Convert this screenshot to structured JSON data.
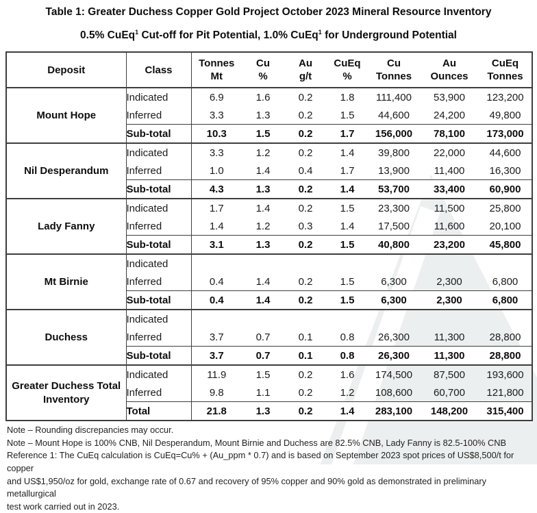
{
  "title": "Table 1: Greater Duchess Copper Gold Project October 2023 Mineral Resource Inventory",
  "subtitle": {
    "p1": "0.5% CuEq",
    "s1": "1",
    "p2": " Cut-off for Pit Potential, 1.0% CuEq",
    "s2": "1",
    "p3": " for Underground Potential"
  },
  "table": {
    "columns": [
      {
        "l1": "Deposit",
        "l2": ""
      },
      {
        "l1": "Class",
        "l2": ""
      },
      {
        "l1": "Tonnes",
        "l2": "Mt"
      },
      {
        "l1": "Cu",
        "l2": "%"
      },
      {
        "l1": "Au",
        "l2": "g/t"
      },
      {
        "l1": "CuEq",
        "l2": "%"
      },
      {
        "l1": "Cu",
        "l2": "Tonnes"
      },
      {
        "l1": "Au",
        "l2": "Ounces"
      },
      {
        "l1": "CuEq",
        "l2": "Tonnes"
      }
    ],
    "groups": [
      {
        "deposit": "Mount Hope",
        "rows": [
          {
            "cls": "Indicated",
            "bold": false,
            "v": [
              "6.9",
              "1.6",
              "0.2",
              "1.8",
              "111,400",
              "53,900",
              "123,200"
            ]
          },
          {
            "cls": "Inferred",
            "bold": false,
            "v": [
              "3.3",
              "1.3",
              "0.2",
              "1.5",
              "44,600",
              "24,200",
              "49,800"
            ]
          },
          {
            "cls": "Sub-total",
            "bold": true,
            "v": [
              "10.3",
              "1.5",
              "0.2",
              "1.7",
              "156,000",
              "78,100",
              "173,000"
            ]
          }
        ]
      },
      {
        "deposit": "Nil Desperandum",
        "rows": [
          {
            "cls": "Indicated",
            "bold": false,
            "v": [
              "3.3",
              "1.2",
              "0.2",
              "1.4",
              "39,800",
              "22,000",
              "44,600"
            ]
          },
          {
            "cls": "Inferred",
            "bold": false,
            "v": [
              "1.0",
              "1.4",
              "0.4",
              "1.7",
              "13,900",
              "11,400",
              "16,300"
            ]
          },
          {
            "cls": "Sub-total",
            "bold": true,
            "v": [
              "4.3",
              "1.3",
              "0.2",
              "1.4",
              "53,700",
              "33,400",
              "60,900"
            ]
          }
        ]
      },
      {
        "deposit": "Lady Fanny",
        "rows": [
          {
            "cls": "Indicated",
            "bold": false,
            "v": [
              "1.7",
              "1.4",
              "0.2",
              "1.5",
              "23,300",
              "11,500",
              "25,800"
            ]
          },
          {
            "cls": "Inferred",
            "bold": false,
            "v": [
              "1.4",
              "1.2",
              "0.3",
              "1.4",
              "17,500",
              "11,600",
              "20,100"
            ]
          },
          {
            "cls": "Sub-total",
            "bold": true,
            "v": [
              "3.1",
              "1.3",
              "0.2",
              "1.5",
              "40,800",
              "23,200",
              "45,800"
            ]
          }
        ]
      },
      {
        "deposit": "Mt Birnie",
        "rows": [
          {
            "cls": "Indicated",
            "bold": false,
            "v": [
              "",
              "",
              "",
              "",
              "",
              "",
              ""
            ]
          },
          {
            "cls": "Inferred",
            "bold": false,
            "v": [
              "0.4",
              "1.4",
              "0.2",
              "1.5",
              "6,300",
              "2,300",
              "6,800"
            ]
          },
          {
            "cls": "Sub-total",
            "bold": true,
            "v": [
              "0.4",
              "1.4",
              "0.2",
              "1.5",
              "6,300",
              "2,300",
              "6,800"
            ]
          }
        ]
      },
      {
        "deposit": "Duchess",
        "rows": [
          {
            "cls": "Indicated",
            "bold": false,
            "v": [
              "",
              "",
              "",
              "",
              "",
              "",
              ""
            ]
          },
          {
            "cls": "Inferred",
            "bold": false,
            "v": [
              "3.7",
              "0.7",
              "0.1",
              "0.8",
              "26,300",
              "11,300",
              "28,800"
            ]
          },
          {
            "cls": "Sub-total",
            "bold": true,
            "v": [
              "3.7",
              "0.7",
              "0.1",
              "0.8",
              "26,300",
              "11,300",
              "28,800"
            ]
          }
        ]
      },
      {
        "deposit": "Greater Duchess Total Inventory",
        "rows": [
          {
            "cls": "Indicated",
            "bold": false,
            "v": [
              "11.9",
              "1.5",
              "0.2",
              "1.6",
              "174,500",
              "87,500",
              "193,600"
            ]
          },
          {
            "cls": "Inferred",
            "bold": false,
            "v": [
              "9.8",
              "1.1",
              "0.2",
              "1.2",
              "108,600",
              "60,700",
              "121,800"
            ]
          },
          {
            "cls": "Total",
            "bold": true,
            "v": [
              "21.8",
              "1.3",
              "0.2",
              "1.4",
              "283,100",
              "148,200",
              "315,400"
            ]
          }
        ]
      }
    ]
  },
  "notes": [
    "Note – Rounding discrepancies may occur.",
    "Note – Mount Hope is 100% CNB, Nil Desperandum, Mount Birnie and Duchess are 82.5% CNB, Lady Fanny is 82.5-100% CNB",
    "Reference 1: The CuEq calculation is CuEq=Cu% + (Au_ppm * 0.7) and is based on September 2023 spot prices of US$8,500/t for copper",
    "and US$1,950/oz for gold, exchange rate of 0.67 and recovery of 95% copper and 90% gold as demonstrated in preliminary metallurgical",
    "test work carried out in 2023."
  ],
  "colors": {
    "text": "#1a1a1a",
    "border": "#3d3d3d",
    "watermark": "#ecefef",
    "background": "#ffffff"
  }
}
